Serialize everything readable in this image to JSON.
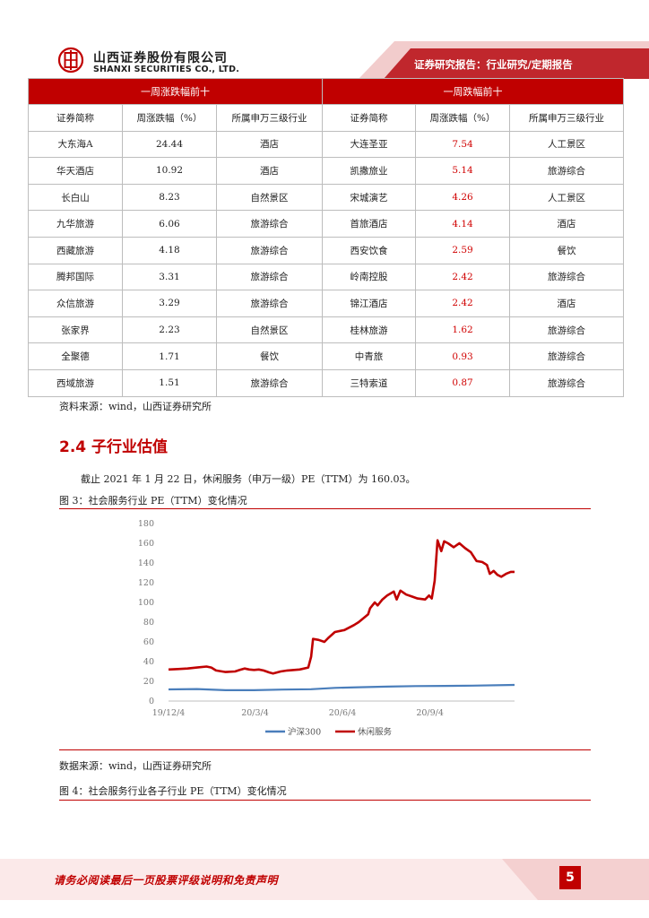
{
  "header": {
    "company_cn": "山西证券股份有限公司",
    "company_en": "SHANXI SECURITIES CO., LTD.",
    "report_type": "证券研究报告：行业研究/定期报告"
  },
  "table": {
    "group_left": "一周涨跌幅前十",
    "group_right": "一周跌幅前十",
    "columns": [
      "证券简称",
      "周涨跌幅（%）",
      "所属申万三级行业",
      "证券简称",
      "周涨跌幅（%）",
      "所属申万三级行业"
    ],
    "rows": [
      {
        "l_name": "大东海A",
        "l_chg": "24.44",
        "l_ind": "酒店",
        "r_name": "大连圣亚",
        "r_chg": "7.54",
        "r_ind": "人工景区"
      },
      {
        "l_name": "华天酒店",
        "l_chg": "10.92",
        "l_ind": "酒店",
        "r_name": "凯撒旅业",
        "r_chg": "5.14",
        "r_ind": "旅游综合"
      },
      {
        "l_name": "长白山",
        "l_chg": "8.23",
        "l_ind": "自然景区",
        "r_name": "宋城演艺",
        "r_chg": "4.26",
        "r_ind": "人工景区"
      },
      {
        "l_name": "九华旅游",
        "l_chg": "6.06",
        "l_ind": "旅游综合",
        "r_name": "首旅酒店",
        "r_chg": "4.14",
        "r_ind": "酒店"
      },
      {
        "l_name": "西藏旅游",
        "l_chg": "4.18",
        "l_ind": "旅游综合",
        "r_name": "西安饮食",
        "r_chg": "2.59",
        "r_ind": "餐饮"
      },
      {
        "l_name": "腾邦国际",
        "l_chg": "3.31",
        "l_ind": "旅游综合",
        "r_name": "岭南控股",
        "r_chg": "2.42",
        "r_ind": "旅游综合"
      },
      {
        "l_name": "众信旅游",
        "l_chg": "3.29",
        "l_ind": "旅游综合",
        "r_name": "锦江酒店",
        "r_chg": "2.42",
        "r_ind": "酒店"
      },
      {
        "l_name": "张家界",
        "l_chg": "2.23",
        "l_ind": "自然景区",
        "r_name": "桂林旅游",
        "r_chg": "1.62",
        "r_ind": "旅游综合"
      },
      {
        "l_name": "全聚德",
        "l_chg": "1.71",
        "l_ind": "餐饮",
        "r_name": "中青旅",
        "r_chg": "0.93",
        "r_ind": "旅游综合"
      },
      {
        "l_name": "西域旅游",
        "l_chg": "1.51",
        "l_ind": "旅游综合",
        "r_name": "三特索道",
        "r_chg": "0.87",
        "r_ind": "旅游综合"
      }
    ]
  },
  "source1": "资料来源：wind，山西证券研究所",
  "section_title": "2.4 子行业估值",
  "paragraph": "截止 2021 年 1 月 22 日，休闲服务（申万一级）PE（TTM）为 160.03。",
  "figure3_caption": "图 3：社会服务行业 PE（TTM）变化情况",
  "chart_data": {
    "type": "line",
    "title": "",
    "xlabel": "",
    "ylabel": "",
    "ylim": [
      0,
      180
    ],
    "yticks": [
      0,
      20,
      40,
      60,
      80,
      100,
      120,
      140,
      160,
      180
    ],
    "x_ticks": [
      {
        "label": "19/12/4",
        "t": 0
      },
      {
        "label": "20/3/4",
        "t": 91
      },
      {
        "label": "20/6/4",
        "t": 183
      },
      {
        "label": "20/9/4",
        "t": 275
      }
    ],
    "x_range": [
      0,
      364
    ],
    "grid": false,
    "legend": "bottom-center",
    "series": [
      {
        "name": "沪深300",
        "color": "#4a7ebb",
        "points": [
          [
            0,
            11.8
          ],
          [
            30,
            12.2
          ],
          [
            60,
            11.0
          ],
          [
            90,
            11.0
          ],
          [
            120,
            11.6
          ],
          [
            150,
            12.0
          ],
          [
            175,
            13.4
          ],
          [
            200,
            14.0
          ],
          [
            230,
            14.6
          ],
          [
            260,
            15.2
          ],
          [
            290,
            15.4
          ],
          [
            320,
            15.6
          ],
          [
            364,
            16.4
          ]
        ]
      },
      {
        "name": "休闲服务",
        "color": "#c00000",
        "points": [
          [
            0,
            32
          ],
          [
            10,
            32.5
          ],
          [
            20,
            33
          ],
          [
            30,
            34
          ],
          [
            40,
            35
          ],
          [
            45,
            34
          ],
          [
            50,
            31
          ],
          [
            60,
            29.5
          ],
          [
            70,
            30
          ],
          [
            75,
            31.5
          ],
          [
            80,
            33
          ],
          [
            85,
            32
          ],
          [
            90,
            31.5
          ],
          [
            95,
            32
          ],
          [
            100,
            31
          ],
          [
            106,
            29
          ],
          [
            110,
            28
          ],
          [
            118,
            30
          ],
          [
            125,
            31
          ],
          [
            138,
            32
          ],
          [
            147,
            34
          ],
          [
            150,
            45
          ],
          [
            152,
            63
          ],
          [
            158,
            62
          ],
          [
            164,
            60
          ],
          [
            168,
            64
          ],
          [
            175,
            70
          ],
          [
            185,
            72
          ],
          [
            195,
            77
          ],
          [
            200,
            80
          ],
          [
            210,
            88
          ],
          [
            212,
            94
          ],
          [
            217,
            100
          ],
          [
            220,
            97
          ],
          [
            225,
            103
          ],
          [
            230,
            107
          ],
          [
            237,
            111
          ],
          [
            240,
            103
          ],
          [
            244,
            112
          ],
          [
            250,
            108
          ],
          [
            256,
            106
          ],
          [
            262,
            104
          ],
          [
            270,
            103
          ],
          [
            274,
            107
          ],
          [
            277,
            104
          ],
          [
            280,
            122
          ],
          [
            283,
            163
          ],
          [
            287,
            152
          ],
          [
            290,
            162
          ],
          [
            294,
            160
          ],
          [
            300,
            156
          ],
          [
            306,
            160
          ],
          [
            312,
            155
          ],
          [
            318,
            151
          ],
          [
            324,
            142
          ],
          [
            330,
            141
          ],
          [
            335,
            138
          ],
          [
            338,
            129
          ],
          [
            342,
            132
          ],
          [
            346,
            128
          ],
          [
            350,
            126
          ],
          [
            355,
            129
          ],
          [
            360,
            131
          ],
          [
            364,
            131
          ]
        ]
      }
    ]
  },
  "source2": "数据来源：wind，山西证券研究所",
  "figure4_caption": "图 4：社会服务行业各子行业 PE（TTM）变化情况",
  "footer": {
    "disclaimer": "请务必阅读最后一页股票评级说明和免责声明",
    "page": "5"
  },
  "colors": {
    "accent": "#c00000",
    "blue_series": "#4a7ebb"
  }
}
